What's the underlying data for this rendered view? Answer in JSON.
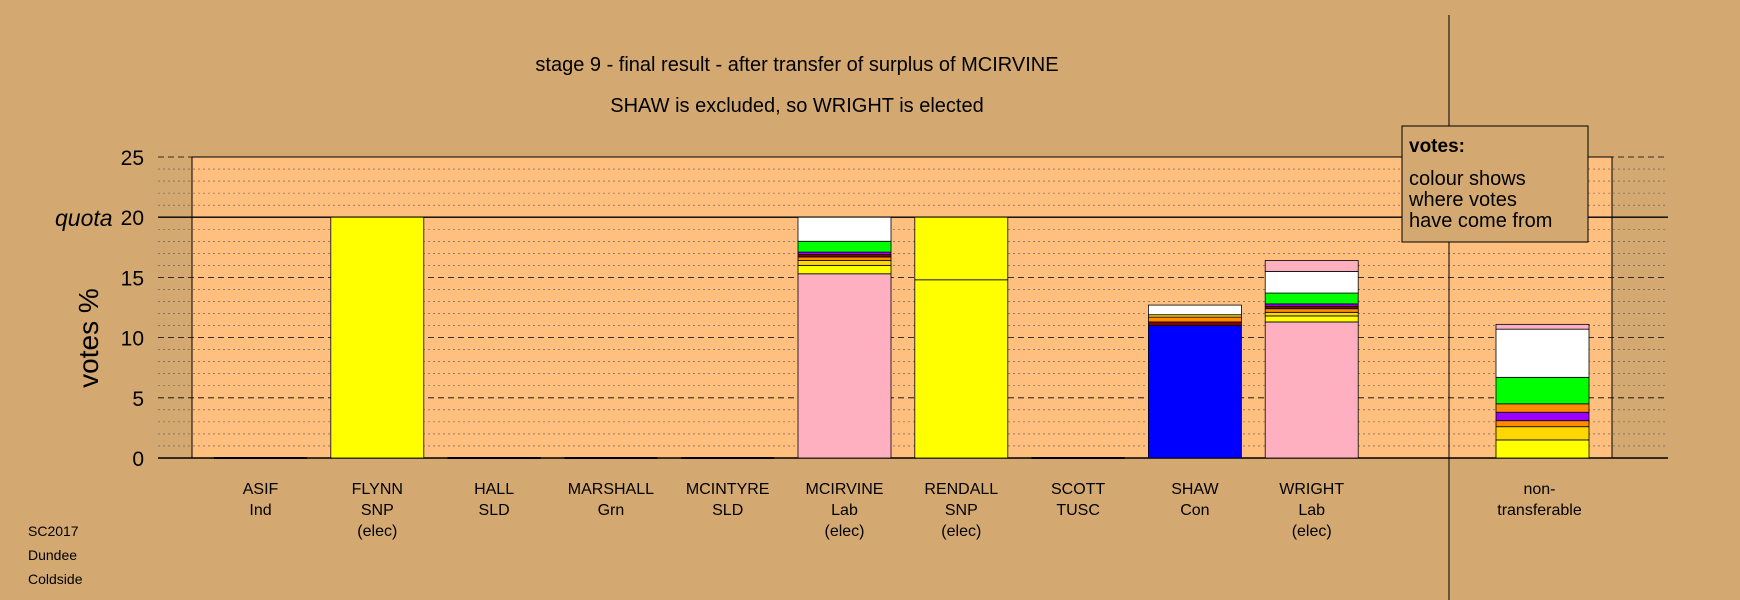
{
  "title": "stage 9 - final result - after transfer of surplus of MCIRVINE",
  "subtitle": "SHAW is excluded, so WRIGHT is elected",
  "ylabel": "votes %",
  "quota_label": "quota",
  "legend": {
    "title": "votes:",
    "lines": [
      "colour shows",
      "where votes",
      "have come from"
    ]
  },
  "footer": [
    "SC2017",
    "Dundee",
    "Coldside"
  ],
  "chart_data": {
    "type": "bar",
    "title": "stage 9 - final result - after transfer of surplus of MCIRVINE",
    "subtitle": "SHAW is excluded, so WRIGHT is elected",
    "ylabel": "votes %",
    "ylim": [
      0,
      25
    ],
    "yticks": [
      0,
      5,
      10,
      15,
      20,
      25
    ],
    "quota": 20,
    "grid": true,
    "stacked": true,
    "colors": {
      "snp": "#ffff00",
      "lab": "#ffb0c0",
      "con": "#0000ff",
      "grn": "#00ff00",
      "ind": "#ffffff",
      "sld": "#ff8c00",
      "tusc": "#9900ff",
      "dark_red": "#8b0000"
    },
    "candidates": [
      {
        "name": "ASIF",
        "party": "Ind",
        "status": "",
        "segments": []
      },
      {
        "name": "FLYNN",
        "party": "SNP",
        "status": "(elec)",
        "segments": [
          {
            "value": 20,
            "color": "#ffff00"
          }
        ]
      },
      {
        "name": "HALL",
        "party": "SLD",
        "status": "",
        "segments": []
      },
      {
        "name": "MARSHALL",
        "party": "Grn",
        "status": "",
        "segments": []
      },
      {
        "name": "MCINTYRE",
        "party": "SLD",
        "status": "",
        "segments": []
      },
      {
        "name": "MCIRVINE",
        "party": "Lab",
        "status": "(elec)",
        "segments": [
          {
            "value": 15.3,
            "color": "#ffb0c0"
          },
          {
            "value": 0.7,
            "color": "#ffff00"
          },
          {
            "value": 0.4,
            "color": "#ffd700"
          },
          {
            "value": 0.3,
            "color": "#ff8c00"
          },
          {
            "value": 0.2,
            "color": "#8b0000"
          },
          {
            "value": 0.2,
            "color": "#9900ff"
          },
          {
            "value": 0.9,
            "color": "#00ff00"
          },
          {
            "value": 2.0,
            "color": "#ffffff"
          }
        ]
      },
      {
        "name": "RENDALL",
        "party": "SNP",
        "status": "(elec)",
        "segments": [
          {
            "value": 14.8,
            "color": "#ffff00"
          },
          {
            "value": 5.2,
            "color": "#ffff00"
          }
        ]
      },
      {
        "name": "SCOTT",
        "party": "TUSC",
        "status": "",
        "segments": []
      },
      {
        "name": "SHAW",
        "party": "Con",
        "status": "",
        "segments": [
          {
            "value": 11.0,
            "color": "#0000ff"
          },
          {
            "value": 0.3,
            "color": "#8b0000"
          },
          {
            "value": 0.4,
            "color": "#ff8c00"
          },
          {
            "value": 0.2,
            "color": "#ffd700"
          },
          {
            "value": 0.8,
            "color": "#ffffff"
          }
        ]
      },
      {
        "name": "WRIGHT",
        "party": "Lab",
        "status": "(elec)",
        "segments": [
          {
            "value": 11.3,
            "color": "#ffb0c0"
          },
          {
            "value": 0.5,
            "color": "#ffff00"
          },
          {
            "value": 0.3,
            "color": "#ffd700"
          },
          {
            "value": 0.3,
            "color": "#ff8c00"
          },
          {
            "value": 0.2,
            "color": "#8b0000"
          },
          {
            "value": 0.2,
            "color": "#9900ff"
          },
          {
            "value": 0.9,
            "color": "#00ff00"
          },
          {
            "value": 1.8,
            "color": "#ffffff"
          },
          {
            "value": 0.9,
            "color": "#ffb0c0"
          }
        ]
      }
    ],
    "nontransferable": {
      "label": [
        "non-",
        "transferable"
      ],
      "segments": [
        {
          "value": 1.5,
          "color": "#ffff00"
        },
        {
          "value": 1.1,
          "color": "#ffd700"
        },
        {
          "value": 0.5,
          "color": "#ff8c00"
        },
        {
          "value": 0.7,
          "color": "#9900ff"
        },
        {
          "value": 0.7,
          "color": "#ff8c00"
        },
        {
          "value": 2.2,
          "color": "#00ff00"
        },
        {
          "value": 4.0,
          "color": "#ffffff"
        },
        {
          "value": 0.4,
          "color": "#ffb0c0"
        }
      ]
    }
  }
}
